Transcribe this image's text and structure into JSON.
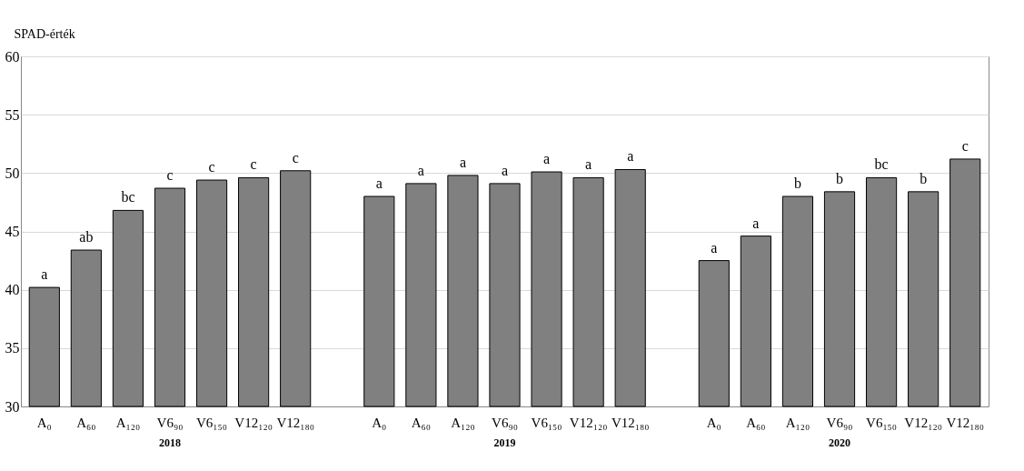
{
  "chart_data": {
    "type": "bar",
    "ylabel": "SPAD-érték",
    "categories": [
      "A₀",
      "A₆₀",
      "A₁₂₀",
      "V6₉₀",
      "V6₁₅₀",
      "V12₁₂₀",
      "V12₁₈₀",
      null,
      "A₀",
      "A₆₀",
      "A₁₂₀",
      "V6₉₀",
      "V6₁₅₀",
      "V12₁₂₀",
      "V12₁₈₀",
      null,
      "A₀",
      "A₆₀",
      "A₁₂₀",
      "V6₉₀",
      "V6₁₅₀",
      "V12₁₂₀",
      "V12₁₈₀"
    ],
    "values": [
      40.2,
      43.4,
      46.8,
      48.7,
      49.4,
      49.6,
      50.2,
      null,
      48.0,
      49.1,
      49.8,
      49.1,
      50.1,
      49.6,
      50.3,
      null,
      42.5,
      44.6,
      48.0,
      48.4,
      49.6,
      48.4,
      51.2
    ],
    "value_labels": [
      "a",
      "ab",
      "bc",
      "c",
      "c",
      "c",
      "c",
      null,
      "a",
      "a",
      "a",
      "a",
      "a",
      "a",
      "a",
      null,
      "a",
      "a",
      "b",
      "b",
      "bc",
      "b",
      "c"
    ],
    "color": "#808080",
    "annotations": [
      "2018",
      "2019",
      "2020"
    ],
    "ylim": [
      30,
      60
    ],
    "yticks": [
      30,
      35,
      40,
      45,
      50,
      55,
      60
    ],
    "grid": "y"
  }
}
